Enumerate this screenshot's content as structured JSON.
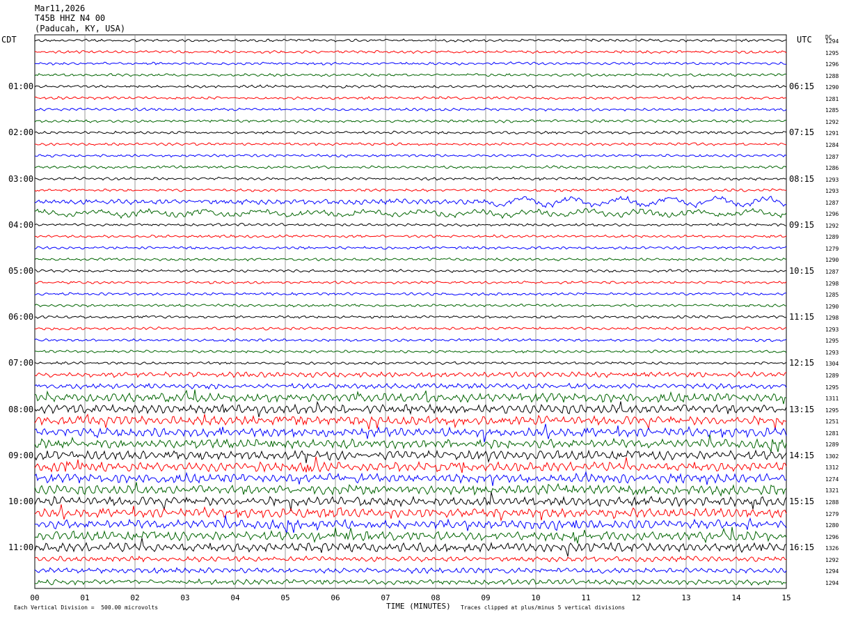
{
  "header": {
    "date": "Mar11,2026",
    "station": "T45B HHZ N4 00",
    "location": "(Paducah, KY, USA)"
  },
  "left_tz": "CDT",
  "right_tz": "UTC",
  "dc_label": "DC",
  "footer": {
    "scale_note": "Each Vertical Division =  500.00 microvolts",
    "clip_note": "Traces clipped at plus/minus 5 vertical divisions"
  },
  "colors": {
    "trace_cycle": [
      "#000000",
      "#ff0000",
      "#0000ff",
      "#006400"
    ],
    "grid": "#808080"
  },
  "chart_data": {
    "type": "line",
    "subtype": "helicorder",
    "xlabel": "TIME (MINUTES)",
    "x_ticks": [
      "00",
      "01",
      "02",
      "03",
      "04",
      "05",
      "06",
      "07",
      "08",
      "09",
      "10",
      "11",
      "12",
      "13",
      "14",
      "15"
    ],
    "xlim": [
      0,
      15
    ],
    "rows_count": 48,
    "left_labels": [
      {
        "row": 4,
        "text": "01:00"
      },
      {
        "row": 8,
        "text": "02:00"
      },
      {
        "row": 12,
        "text": "03:00"
      },
      {
        "row": 16,
        "text": "04:00"
      },
      {
        "row": 20,
        "text": "05:00"
      },
      {
        "row": 24,
        "text": "06:00"
      },
      {
        "row": 28,
        "text": "07:00"
      },
      {
        "row": 32,
        "text": "08:00"
      },
      {
        "row": 36,
        "text": "09:00"
      },
      {
        "row": 40,
        "text": "10:00"
      },
      {
        "row": 44,
        "text": "11:00"
      }
    ],
    "right_labels": [
      {
        "row": 4,
        "text": "06:15"
      },
      {
        "row": 8,
        "text": "07:15"
      },
      {
        "row": 12,
        "text": "08:15"
      },
      {
        "row": 16,
        "text": "09:15"
      },
      {
        "row": 20,
        "text": "10:15"
      },
      {
        "row": 24,
        "text": "11:15"
      },
      {
        "row": 28,
        "text": "12:15"
      },
      {
        "row": 32,
        "text": "13:15"
      },
      {
        "row": 36,
        "text": "14:15"
      },
      {
        "row": 40,
        "text": "15:15"
      },
      {
        "row": 44,
        "text": "16:15"
      }
    ],
    "dc_values": [
      "1294",
      "1295",
      "1296",
      "1288",
      "1290",
      "1281",
      "1285",
      "1292",
      "1291",
      "1284",
      "1287",
      "1286",
      "1293",
      "1293",
      "1287",
      "1296",
      "1292",
      "1289",
      "1279",
      "1290",
      "1287",
      "1298",
      "1285",
      "1290",
      "1298",
      "1293",
      "1295",
      "1293",
      "1304",
      "1289",
      "1295",
      "1311",
      "1295",
      "1251",
      "1281",
      "1289",
      "1302",
      "1312",
      "1274",
      "1321",
      "1288",
      "1279",
      "1280",
      "1296",
      "1326",
      "1292",
      "1294",
      "1294"
    ],
    "noise_level": [
      1,
      1,
      1,
      1,
      1,
      1,
      1,
      1,
      1,
      1,
      1,
      1,
      1,
      1,
      2,
      2,
      1,
      1,
      1,
      1,
      1,
      1,
      1,
      1,
      1,
      1,
      1,
      1,
      1,
      2,
      2,
      3,
      3,
      3,
      3,
      3,
      3,
      3,
      3,
      3,
      3,
      3,
      3,
      3,
      3,
      2,
      2,
      2
    ]
  }
}
